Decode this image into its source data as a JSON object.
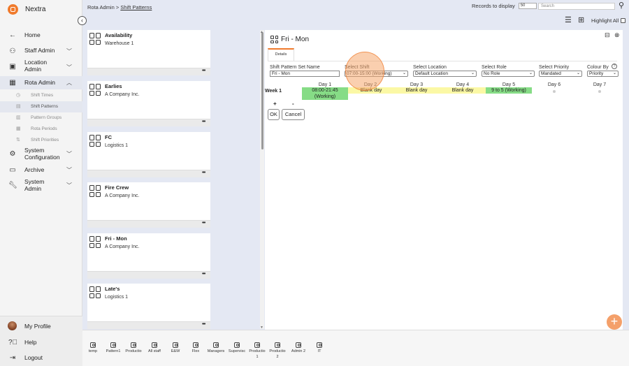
{
  "app": {
    "name": "Nextra"
  },
  "nav": {
    "home": "Home",
    "staff_admin": "Staff Admin",
    "location_admin_1": "Location",
    "location_admin_2": "Admin",
    "rota_admin": "Rota Admin",
    "sub_items": [
      "Shift Times",
      "Shift Patterns",
      "Pattern Groups",
      "Rota Periods",
      "Shift Priorities"
    ],
    "system_config_1": "System",
    "system_config_2": "Configuration",
    "archive": "Archive",
    "system_admin_1": "System",
    "system_admin_2": "Admin",
    "my_profile": "My Profile",
    "help": "Help",
    "logout": "Logout"
  },
  "topbar": {
    "breadcrumb_root": "Rota Admin >",
    "breadcrumb_current": "Shift Patterns",
    "records_label": "Records to display",
    "records_value": "50",
    "search_placeholder": "Search",
    "highlight_all": "Highlight All"
  },
  "cards": [
    {
      "title": "Availability",
      "subtitle": "Warehouse 1"
    },
    {
      "title": "Earlies",
      "subtitle": "A Company Inc."
    },
    {
      "title": "FC",
      "subtitle": "Logistics 1"
    },
    {
      "title": "Fire Crew",
      "subtitle": "A Company Inc."
    },
    {
      "title": "Fri - Mon",
      "subtitle": "A Company Inc."
    },
    {
      "title": "Late's",
      "subtitle": "Logistics 1"
    }
  ],
  "card_menu": "•••",
  "detail": {
    "title": "Fri - Mon",
    "tab": "Details",
    "fields": {
      "set_name_label": "Shift Pattern Set Name",
      "set_name_value": "Fri - Mon",
      "shift_label": "Select Shift",
      "shift_value": "07:00-15:00 (Working)",
      "location_label": "Select Location",
      "location_value": "Default Location",
      "role_label": "Select Role",
      "role_value": "No Role",
      "priority_label": "Select Priority",
      "priority_value": "Mandated",
      "colour_label": "Colour By",
      "colour_value": "Priority"
    },
    "days": [
      "Day 1",
      "Day 2",
      "Day 3",
      "Day 4",
      "Day 5",
      "Day 6",
      "Day 7"
    ],
    "week_label": "Week 1",
    "cells": [
      "08:00-21:45 (Working)",
      "Blank day",
      "Blank day",
      "Blank day",
      "9 to 5 (Working)",
      "",
      ""
    ],
    "plus": "+",
    "minus": "-",
    "ok": "OK",
    "cancel": "Cancel"
  },
  "fab": "+",
  "tray": [
    {
      "label_1": "temp",
      "label_2": ""
    },
    {
      "label_1": "Pattern1",
      "label_2": ""
    },
    {
      "label_1": "Productio",
      "label_2": ""
    },
    {
      "label_1": "All staff",
      "label_2": ""
    },
    {
      "label_1": "E&W",
      "label_2": ""
    },
    {
      "label_1": "Flex",
      "label_2": ""
    },
    {
      "label_1": "Managers",
      "label_2": ""
    },
    {
      "label_1": "Supervisc",
      "label_2": ""
    },
    {
      "label_1": "Productio",
      "label_2": "1"
    },
    {
      "label_1": "Productio",
      "label_2": "2"
    },
    {
      "label_1": "Admin 2",
      "label_2": ""
    },
    {
      "label_1": "IT",
      "label_2": ""
    }
  ],
  "colors": {
    "accent": "#f07a2c",
    "working": "#86dc86",
    "blank": "#fbf8a5"
  }
}
